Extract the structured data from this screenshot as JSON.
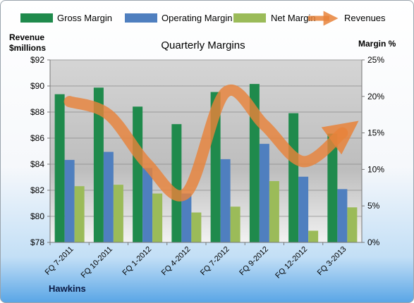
{
  "company": "Hawkins",
  "chart_data": {
    "type": "bar",
    "title": "Quarterly Margins",
    "left_axis_label_line1": "Revenue",
    "left_axis_label_line2": "$millions",
    "right_axis_label": "Margin %",
    "categories": [
      "FQ 7-2011",
      "FQ 10-2011",
      "FQ 1-2012",
      "FQ 4-2012",
      "FQ 7-2012",
      "FQ 9-2012",
      "FQ 12-2012",
      "FQ 3-2013"
    ],
    "left_ylim": [
      78,
      92
    ],
    "left_ticks": [
      "$78",
      "$80",
      "$82",
      "$84",
      "$86",
      "$88",
      "$90",
      "$92"
    ],
    "right_ylim": [
      0,
      25
    ],
    "right_ticks": [
      "0%",
      "5%",
      "10%",
      "15%",
      "20%",
      "25%"
    ],
    "grid": true,
    "legend_position": "top",
    "series": [
      {
        "name": "Gross Margin",
        "axis": "right",
        "chart": "bar",
        "color": "#1f8a4c",
        "values": [
          20.3,
          21.2,
          18.6,
          16.2,
          20.6,
          21.7,
          17.7,
          14.9
        ]
      },
      {
        "name": "Operating Margin",
        "axis": "right",
        "chart": "bar",
        "color": "#4f7fbf",
        "values": [
          11.3,
          12.4,
          10.2,
          6.7,
          11.4,
          13.5,
          9.0,
          7.3
        ]
      },
      {
        "name": "Net Margin",
        "axis": "right",
        "chart": "bar",
        "color": "#9bbb59",
        "values": [
          7.7,
          7.9,
          6.7,
          4.1,
          4.9,
          8.4,
          1.6,
          4.8
        ]
      },
      {
        "name": "Revenues",
        "axis": "left",
        "chart": "line",
        "color": "#e8823a",
        "values": [
          88.8,
          87.8,
          84.0,
          81.8,
          89.5,
          87.0,
          84.2,
          86.4
        ]
      }
    ]
  }
}
